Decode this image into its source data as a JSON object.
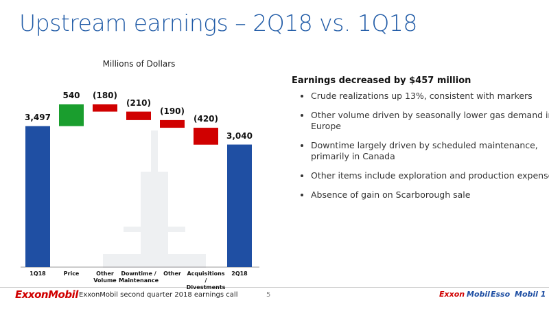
{
  "title": "Upstream earnings – 2Q18 vs. 1Q18",
  "chart_data": {
    "type": "waterfall",
    "subtitle": "Millions of Dollars",
    "categories": [
      "1Q18",
      "Price",
      "Other Volume",
      "Downtime / Maintenance",
      "Other",
      "Acquisitions / Divestments",
      "2Q18"
    ],
    "values": [
      3497,
      540,
      -180,
      -210,
      -190,
      -420,
      3040
    ],
    "value_labels": [
      "3,497",
      "540",
      "(180)",
      "(210)",
      "(190)",
      "(420)",
      "3,040"
    ],
    "totals": [
      true,
      false,
      false,
      false,
      false,
      false,
      true
    ],
    "colors": {
      "total": "#1f4fa3",
      "increase": "#1a9e2e",
      "decrease": "#d00000"
    }
  },
  "panel": {
    "heading": "Earnings decreased by $457 million",
    "bullets": [
      "Crude realizations up 13%, consistent with markers",
      "Other volume driven by seasonally lower gas demand in Europe",
      "Downtime largely driven by scheduled maintenance, primarily in Canada",
      "Other items include exploration and production expenses",
      "Absence of gain on Scarborough sale"
    ]
  },
  "footer": {
    "logo": "ExxonMobil",
    "text": "ExxonMobil second quarter 2018 earnings call",
    "page": "5",
    "brands": [
      "Exxon",
      "Mobil",
      "Esso",
      "Mobil 1"
    ]
  }
}
